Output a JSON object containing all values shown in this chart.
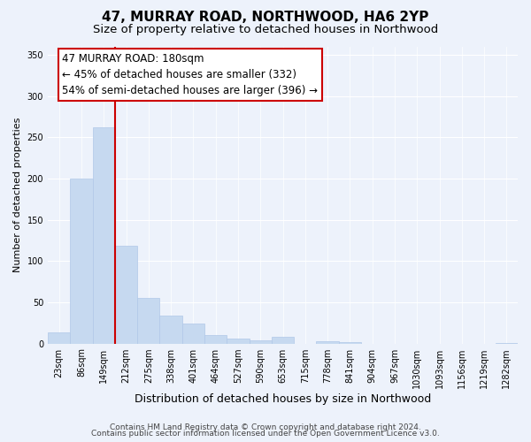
{
  "title": "47, MURRAY ROAD, NORTHWOOD, HA6 2YP",
  "subtitle": "Size of property relative to detached houses in Northwood",
  "xlabel": "Distribution of detached houses by size in Northwood",
  "ylabel": "Number of detached properties",
  "bar_labels": [
    "23sqm",
    "86sqm",
    "149sqm",
    "212sqm",
    "275sqm",
    "338sqm",
    "401sqm",
    "464sqm",
    "527sqm",
    "590sqm",
    "653sqm",
    "715sqm",
    "778sqm",
    "841sqm",
    "904sqm",
    "967sqm",
    "1030sqm",
    "1093sqm",
    "1156sqm",
    "1219sqm",
    "1282sqm"
  ],
  "bar_values": [
    13,
    200,
    262,
    118,
    55,
    34,
    24,
    10,
    6,
    4,
    8,
    0,
    3,
    2,
    0,
    0,
    0,
    0,
    0,
    0,
    1
  ],
  "bar_color": "#c6d9f0",
  "reference_line_color": "#cc0000",
  "reference_line_x": 2.5,
  "annotation_line1": "47 MURRAY ROAD: 180sqm",
  "annotation_line2": "← 45% of detached houses are smaller (332)",
  "annotation_line3": "54% of semi-detached houses are larger (396) →",
  "annotation_box_facecolor": "#ffffff",
  "annotation_box_edgecolor": "#cc0000",
  "ylim": [
    0,
    360
  ],
  "yticks": [
    0,
    50,
    100,
    150,
    200,
    250,
    300,
    350
  ],
  "footer_line1": "Contains HM Land Registry data © Crown copyright and database right 2024.",
  "footer_line2": "Contains public sector information licensed under the Open Government Licence v3.0.",
  "title_fontsize": 11,
  "subtitle_fontsize": 9.5,
  "xlabel_fontsize": 9,
  "ylabel_fontsize": 8,
  "tick_fontsize": 7,
  "footer_fontsize": 6.5,
  "annotation_fontsize": 8.5,
  "bg_color": "#edf2fb",
  "grid_color": "#ffffff",
  "bar_edgecolor": "#b0c8e8"
}
